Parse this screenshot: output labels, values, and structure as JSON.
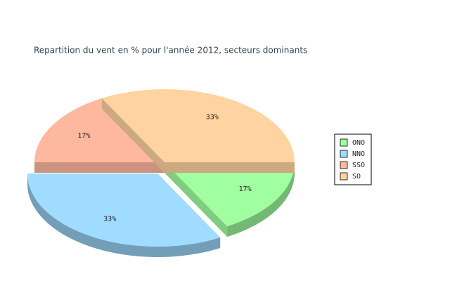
{
  "chart_data": {
    "type": "pie3d",
    "title": "Repartition du vent en % pour l'année 2012, secteurs dominants",
    "categories": [
      "ONO",
      "NNO",
      "SSO",
      "SO"
    ],
    "values": [
      17,
      33,
      17,
      33
    ],
    "value_labels": [
      "17%",
      "33%",
      "17%",
      "33%"
    ],
    "colors": [
      "#a0ffa0",
      "#a0dcff",
      "#ffb8a0",
      "#ffd4a0"
    ],
    "explode": [
      false,
      true,
      false,
      false
    ],
    "legend": "right"
  }
}
